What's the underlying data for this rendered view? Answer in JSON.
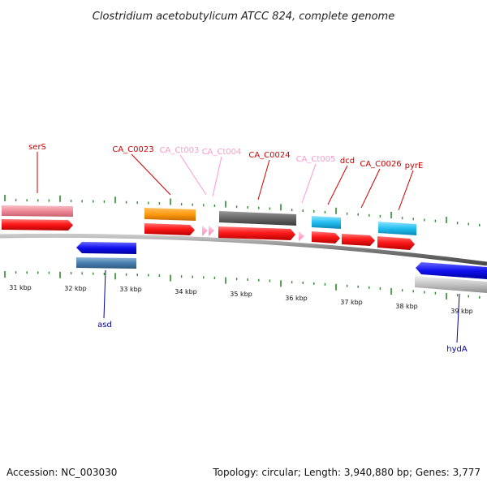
{
  "title": "Clostridium acetobutylicum ATCC 824, complete genome",
  "footer": {
    "accession": "Accession: NC_003030",
    "summary": "Topology: circular; Length: 3,940,880 bp; Genes: 3,777"
  },
  "colors": {
    "backbone": "#8a8a8a",
    "tick": "#2e8b2e",
    "cds_red": "#ff1a1a",
    "rna_pink": "#ff99cc",
    "label_red": "#cc0000",
    "label_pink": "#ff99cc",
    "label_blue": "#0000aa"
  },
  "ticks": [
    {
      "label": "31 kbp"
    },
    {
      "label": "32 kbp"
    },
    {
      "label": "33 kbp"
    },
    {
      "label": "34 kbp"
    },
    {
      "label": "35 kbp"
    },
    {
      "label": "36 kbp"
    },
    {
      "label": "37 kbp"
    },
    {
      "label": "38 kbp"
    },
    {
      "label": "39 kbp"
    }
  ],
  "gene_labels": [
    {
      "name": "serS",
      "color": "#cc0000"
    },
    {
      "name": "CA_C0023",
      "color": "#cc0000"
    },
    {
      "name": "CA_Ct003",
      "color": "#ff99cc"
    },
    {
      "name": "CA_Ct004",
      "color": "#ff99cc"
    },
    {
      "name": "CA_C0024",
      "color": "#cc0000"
    },
    {
      "name": "CA_Ct005",
      "color": "#ff99cc"
    },
    {
      "name": "dcd",
      "color": "#cc0000"
    },
    {
      "name": "CA_C0026",
      "color": "#cc0000"
    },
    {
      "name": "pyrE",
      "color": "#cc0000"
    },
    {
      "name": "asd",
      "color": "#0000aa"
    },
    {
      "name": "hydA",
      "color": "#0000aa"
    }
  ]
}
